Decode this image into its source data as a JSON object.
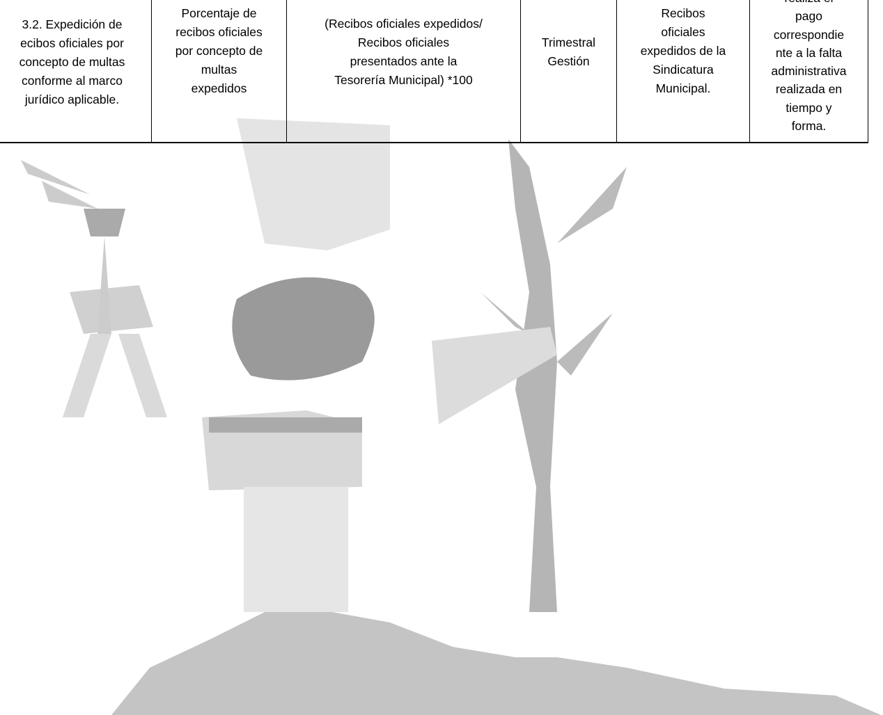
{
  "table": {
    "rows": [
      [
        [
          "3.2. Expedición de",
          "ecibos oficiales por",
          "concepto de multas",
          "conforme al marco",
          "jurídico aplicable."
        ],
        [
          "Porcentaje de",
          "recibos oficiales",
          "por concepto de",
          "multas",
          "expedidos"
        ],
        [
          "(Recibos oficiales expedidos/",
          "Recibos oficiales",
          "presentados ante la",
          "Tesorería Municipal) *100"
        ],
        [
          "Trimestral",
          "Gestión"
        ],
        [
          "Recibos",
          "oficiales",
          "expedidos de la",
          "Sindicatura",
          "Municipal."
        ],
        [
          "realiza el",
          "pago",
          "correspondie",
          "nte a la falta",
          "administrativa",
          "realizada en",
          "tiempo y",
          "forma."
        ]
      ]
    ]
  }
}
